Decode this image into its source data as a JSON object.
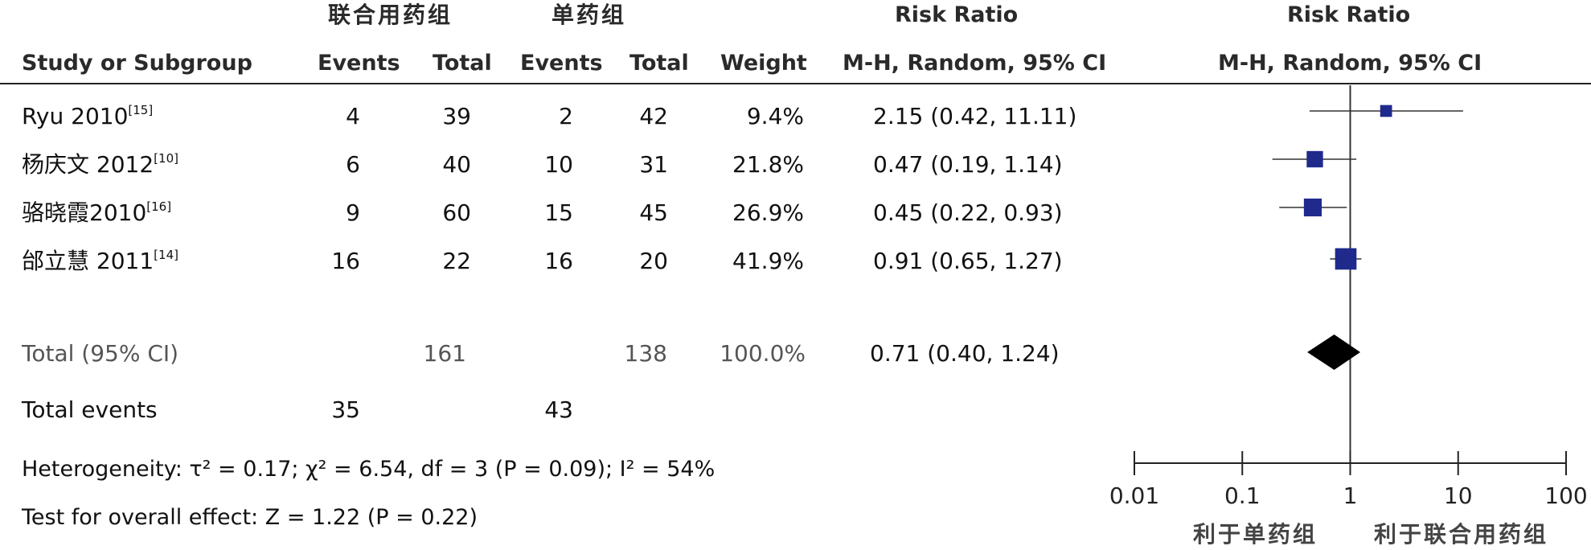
{
  "headers": {
    "group_combined": "联合用药组",
    "group_single": "单药组",
    "rr_title": "Risk Ratio",
    "rr_method": "M-H, Random, 95% CI",
    "plot_title": "Risk Ratio",
    "plot_method": "M-H, Random, 95% CI",
    "study": "Study or Subgroup",
    "events1": "Events",
    "total1": "Total",
    "events2": "Events",
    "total2": "Total",
    "weight": "Weight"
  },
  "studies": [
    {
      "name": "Ryu 2010",
      "ref": "[15]",
      "e1": "4",
      "t1": "39",
      "e2": "2",
      "t2": "42",
      "weight": "9.4%",
      "ci_text": "2.15 (0.42, 11.11)"
    },
    {
      "name": "杨庆文 2012",
      "ref": "[10]",
      "e1": "6",
      "t1": "40",
      "e2": "10",
      "t2": "31",
      "weight": "21.8%",
      "ci_text": "0.47 (0.19, 1.14)"
    },
    {
      "name": "骆晓霞2010",
      "ref": "[16]",
      "e1": "9",
      "t1": "60",
      "e2": "15",
      "t2": "45",
      "weight": "26.9%",
      "ci_text": "0.45 (0.22, 0.93)"
    },
    {
      "name": "邰立慧 2011",
      "ref": "[14]",
      "e1": "16",
      "t1": "22",
      "e2": "16",
      "t2": "20",
      "weight": "41.9%",
      "ci_text": "0.91 (0.65, 1.27)"
    }
  ],
  "total": {
    "label": "Total (95% CI)",
    "t1": "161",
    "t2": "138",
    "weight": "100.0%",
    "ci_text": "0.71 (0.40, 1.24)"
  },
  "total_events": {
    "label": "Total events",
    "e1": "35",
    "e2": "43"
  },
  "heterogeneity": "Heterogeneity: τ² = 0.17; χ² = 6.54, df = 3 (P = 0.09); I² = 54%",
  "overall_effect": "Test for overall effect: Z = 1.22 (P = 0.22)",
  "favours": {
    "left": "利于单药组",
    "right": "利于联合用药组"
  },
  "chart_data": {
    "type": "scatter",
    "x_scale": "log",
    "xlim": [
      0.01,
      100
    ],
    "x_ticks": [
      "0.01",
      "0.1",
      "1",
      "10",
      "100"
    ],
    "x_tick_values": [
      0.01,
      0.1,
      1,
      10,
      100
    ],
    "reference_line": 1,
    "studies": [
      {
        "rr": 2.15,
        "lower": 0.42,
        "upper": 11.11,
        "weight": 9.4
      },
      {
        "rr": 0.47,
        "lower": 0.19,
        "upper": 1.14,
        "weight": 21.8
      },
      {
        "rr": 0.45,
        "lower": 0.22,
        "upper": 0.93,
        "weight": 26.9
      },
      {
        "rr": 0.91,
        "lower": 0.65,
        "upper": 1.27,
        "weight": 41.9
      }
    ],
    "pooled": {
      "rr": 0.71,
      "lower": 0.4,
      "upper": 1.24
    },
    "colors": {
      "square": "#1f2a8c",
      "diamond": "#000000",
      "line": "#333333"
    }
  }
}
